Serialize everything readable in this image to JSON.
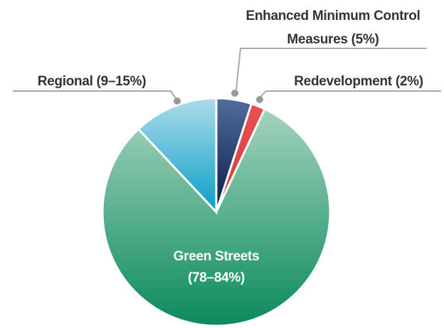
{
  "chart_data": {
    "type": "pie",
    "categories": [
      "Enhanced Minimum Control Measures",
      "Redevelopment",
      "Green Streets",
      "Regional"
    ],
    "values": [
      5,
      2,
      81,
      12
    ],
    "value_labels": [
      "(5%)",
      "(2%)",
      "(78–84%)",
      "(9–15%)"
    ],
    "colors": [
      [
        "#4f6e9c",
        "#0b1a4a"
      ],
      [
        "#e85050",
        "#d43c3c"
      ],
      [
        "#a3d3bd",
        "#0b8a5c"
      ],
      [
        "#acdcea",
        "#0a9ec6"
      ]
    ]
  }
}
